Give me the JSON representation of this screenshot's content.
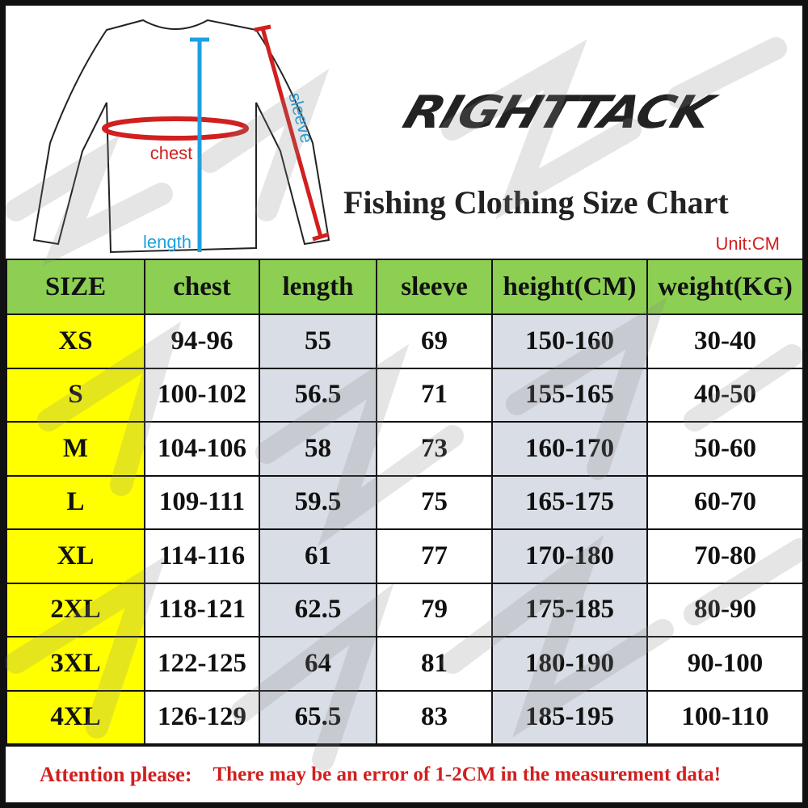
{
  "header": {
    "logo_text": "RIGHTTACK",
    "title": "Fishing Clothing Size Chart",
    "unit": "Unit:CM",
    "diagram_labels": {
      "chest": "chest",
      "length": "length",
      "sleeve": "sleeve"
    }
  },
  "table": {
    "columns": [
      "SIZE",
      "chest",
      "length",
      "sleeve",
      "height(CM)",
      "weight(KG)"
    ],
    "rows": [
      [
        "XS",
        "94-96",
        "55",
        "69",
        "150-160",
        "30-40"
      ],
      [
        "S",
        "100-102",
        "56.5",
        "71",
        "155-165",
        "40-50"
      ],
      [
        "M",
        "104-106",
        "58",
        "73",
        "160-170",
        "50-60"
      ],
      [
        "L",
        "109-111",
        "59.5",
        "75",
        "165-175",
        "60-70"
      ],
      [
        "XL",
        "114-116",
        "61",
        "77",
        "170-180",
        "70-80"
      ],
      [
        "2XL",
        "118-121",
        "62.5",
        "79",
        "175-185",
        "80-90"
      ],
      [
        "3XL",
        "122-125",
        "64",
        "81",
        "180-190",
        "90-100"
      ],
      [
        "4XL",
        "126-129",
        "65.5",
        "83",
        "185-195",
        "100-110"
      ]
    ]
  },
  "footer": {
    "attention": "Attention please:",
    "note": "There may be an error of 1-2CM in the measurement data!"
  },
  "colors": {
    "header_green": "#8ccf53",
    "size_yellow": "#ffff00",
    "shade": "#d9dee6",
    "red": "#d0201f",
    "blue": "#1ea0e0"
  }
}
